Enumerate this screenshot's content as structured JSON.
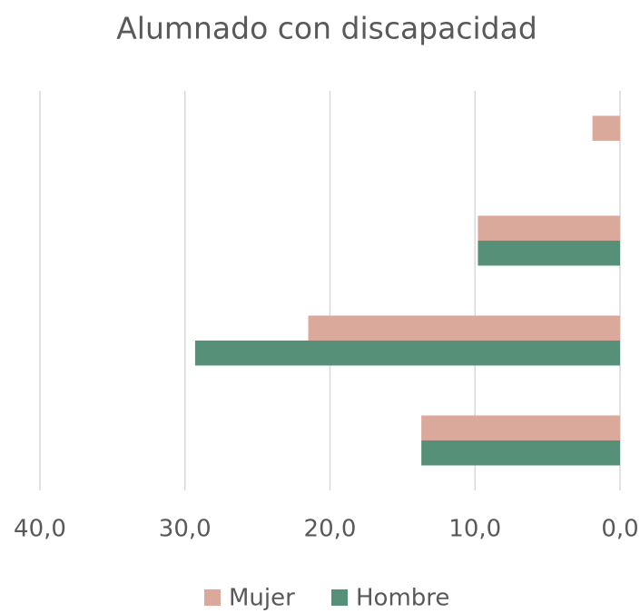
{
  "chart_data": {
    "type": "barh",
    "title": "Alumnado con discapacidad",
    "categories": [
      null,
      null,
      null,
      null
    ],
    "series": [
      {
        "name": "Mujer",
        "color": "#dba99b",
        "values": [
          1.9,
          9.8,
          21.5,
          13.7
        ]
      },
      {
        "name": "Hombre",
        "color": "#579079",
        "values": [
          0,
          9.8,
          29.3,
          13.7
        ]
      }
    ],
    "xlim": [
      40,
      0
    ],
    "xticks": [
      {
        "value": 40,
        "label": "40,0"
      },
      {
        "value": 30,
        "label": "30,0"
      },
      {
        "value": 20,
        "label": "20,0"
      },
      {
        "value": 10,
        "label": "10,0"
      },
      {
        "value": 0,
        "label": "0,0"
      }
    ],
    "grid": true,
    "legend": "bottom"
  }
}
